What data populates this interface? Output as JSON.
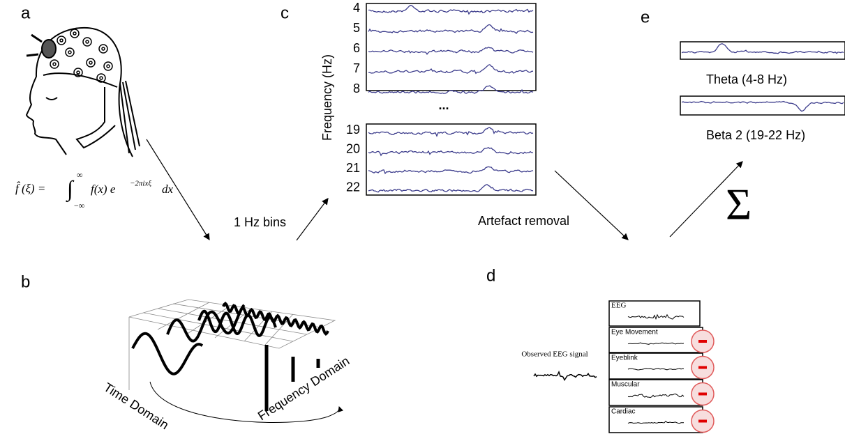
{
  "panels": {
    "a": "a",
    "b": "b",
    "c": "c",
    "d": "d",
    "e": "e"
  },
  "formula": {
    "lhs": "f̂ (ξ) =",
    "integral": "∫",
    "upper": "∞",
    "lower": "−∞",
    "integrand": "f(x) e",
    "exponent": "−2πixξ",
    "dx": "dx"
  },
  "steps": {
    "bins": "1 Hz bins",
    "artefact": "Artefact removal",
    "sum": "Σ"
  },
  "frequency_plot": {
    "axis_label": "Frequency (Hz)",
    "top_rows": [
      4,
      5,
      6,
      7,
      8
    ],
    "ellipsis": "...",
    "bottom_rows": [
      19,
      20,
      21,
      22
    ]
  },
  "bands": [
    "Theta (4-8 Hz)",
    "Beta 2 (19-22 Hz)"
  ],
  "domains": {
    "time": "Time Domain",
    "frequency": "Frequency Domain"
  },
  "decomposition": {
    "observed": "Observed EEG signal",
    "components": [
      "EEG",
      "Eye Movement",
      "Eyeblink",
      "Muscular",
      "Cardiac"
    ]
  }
}
